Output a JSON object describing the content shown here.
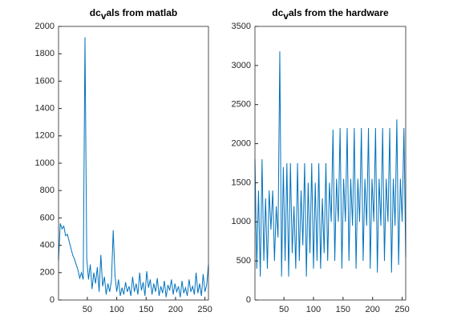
{
  "chart_data": [
    {
      "type": "line",
      "title": "dcvals from matlab",
      "color": "#0072BD",
      "x": [
        1,
        4,
        7,
        10,
        13,
        16,
        19,
        22,
        25,
        28,
        31,
        34,
        37,
        40,
        43,
        46,
        49,
        52,
        55,
        58,
        61,
        64,
        67,
        70,
        73,
        76,
        79,
        82,
        85,
        88,
        91,
        94,
        97,
        100,
        103,
        106,
        109,
        112,
        115,
        118,
        121,
        124,
        127,
        130,
        133,
        136,
        139,
        142,
        145,
        148,
        151,
        154,
        157,
        160,
        163,
        166,
        169,
        172,
        175,
        178,
        181,
        184,
        187,
        190,
        193,
        196,
        199,
        202,
        205,
        208,
        211,
        214,
        217,
        220,
        223,
        226,
        229,
        232,
        235,
        238,
        241,
        244,
        247,
        250,
        253,
        256
      ],
      "values": [
        290,
        560,
        520,
        540,
        470,
        480,
        430,
        380,
        330,
        300,
        260,
        220,
        160,
        200,
        150,
        1920,
        300,
        150,
        260,
        80,
        200,
        120,
        240,
        60,
        330,
        100,
        170,
        40,
        120,
        60,
        140,
        510,
        180,
        60,
        150,
        30,
        90,
        40,
        130,
        60,
        100,
        30,
        170,
        60,
        120,
        40,
        200,
        70,
        130,
        30,
        210,
        90,
        150,
        40,
        120,
        60,
        160,
        30,
        100,
        50,
        140,
        20,
        110,
        70,
        150,
        40,
        120,
        60,
        100,
        20,
        140,
        50,
        90,
        30,
        150,
        60,
        100,
        40,
        200,
        50,
        120,
        30,
        190,
        60,
        110,
        260
      ],
      "xlim": [
        1,
        256
      ],
      "xticks": [
        50,
        100,
        150,
        200,
        250
      ],
      "ylim": [
        0,
        2000
      ],
      "yticks": [
        0,
        200,
        400,
        600,
        800,
        1000,
        1200,
        1400,
        1600,
        1800,
        2000
      ]
    },
    {
      "type": "line",
      "title": "dcvals from the hardware",
      "color": "#0072BD",
      "x": [
        1,
        4,
        7,
        10,
        13,
        16,
        19,
        22,
        25,
        28,
        31,
        34,
        37,
        40,
        43,
        46,
        49,
        52,
        55,
        58,
        61,
        64,
        67,
        70,
        73,
        76,
        79,
        82,
        85,
        88,
        91,
        94,
        97,
        100,
        103,
        106,
        109,
        112,
        115,
        118,
        121,
        124,
        127,
        130,
        133,
        136,
        139,
        142,
        145,
        148,
        151,
        154,
        157,
        160,
        163,
        166,
        169,
        172,
        175,
        178,
        181,
        184,
        187,
        190,
        193,
        196,
        199,
        202,
        205,
        208,
        211,
        214,
        217,
        220,
        223,
        226,
        229,
        232,
        235,
        238,
        241,
        244,
        247,
        250,
        253,
        256
      ],
      "values": [
        1800,
        400,
        1400,
        300,
        1800,
        500,
        1300,
        400,
        1400,
        900,
        1400,
        500,
        1200,
        800,
        3180,
        300,
        1700,
        500,
        1750,
        300,
        1750,
        600,
        1200,
        400,
        1750,
        500,
        1400,
        700,
        1750,
        300,
        1500,
        600,
        1750,
        400,
        1500,
        500,
        1750,
        400,
        1300,
        600,
        1750,
        500,
        1500,
        1000,
        2180,
        500,
        1550,
        1000,
        2200,
        400,
        1550,
        1000,
        2200,
        500,
        1550,
        950,
        2200,
        400,
        1550,
        1000,
        2200,
        500,
        1550,
        950,
        2200,
        400,
        1550,
        1000,
        2200,
        350,
        1550,
        950,
        2200,
        500,
        1550,
        1000,
        2200,
        350,
        1550,
        950,
        2310,
        450,
        1550,
        1000,
        2200,
        550
      ],
      "xlim": [
        1,
        256
      ],
      "xticks": [
        50,
        100,
        150,
        200,
        250
      ],
      "ylim": [
        0,
        3500
      ],
      "yticks": [
        0,
        500,
        1000,
        1500,
        2000,
        2500,
        3000,
        3500
      ]
    }
  ]
}
